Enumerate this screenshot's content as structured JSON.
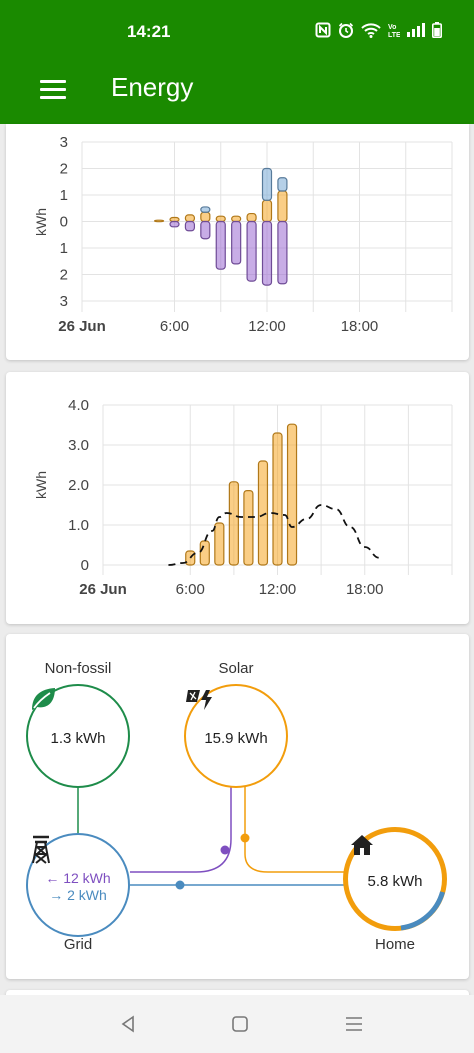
{
  "status_bar": {
    "time": "14:21"
  },
  "app_bar": {
    "title": "Energy"
  },
  "chart_data": [
    {
      "type": "bar",
      "ylabel": "kWh",
      "y_tick_labels": [
        "3",
        "2",
        "1",
        "0",
        "1",
        "2",
        "3"
      ],
      "ylim": [
        -3,
        3
      ],
      "x_tick_labels": [
        "26 Jun",
        "6:00",
        "12:00",
        "18:00"
      ],
      "x_range_hours": [
        0,
        24
      ],
      "grid": true,
      "x_hours": [
        5,
        6,
        7,
        8,
        9,
        10,
        11,
        12,
        13
      ],
      "series": [
        {
          "name": "",
          "color": "#f5a623",
          "values": [
            0.05,
            0.15,
            0.25,
            0.35,
            0.2,
            0.2,
            0.3,
            0.8,
            1.15
          ]
        },
        {
          "name": "",
          "color": "#79aad6",
          "values": [
            0,
            0,
            0,
            0.2,
            0,
            0,
            0,
            1.2,
            0.5
          ]
        },
        {
          "name": "",
          "color": "#9a6ad1",
          "values": [
            0,
            -0.2,
            -0.35,
            -0.65,
            -1.8,
            -1.6,
            -2.25,
            -2.4,
            -2.35
          ]
        }
      ]
    },
    {
      "type": "bar",
      "ylabel": "kWh",
      "y_tick_labels": [
        "0",
        "1.0",
        "2.0",
        "3.0",
        "4.0"
      ],
      "ylim": [
        0,
        4
      ],
      "x_tick_labels": [
        "26 Jun",
        "6:00",
        "12:00",
        "18:00"
      ],
      "x_range_hours": [
        0,
        24
      ],
      "grid": true,
      "x_hours": [
        6,
        7,
        8,
        9,
        10,
        11,
        12,
        13
      ],
      "series": [
        {
          "name": "",
          "color": "#f5a623",
          "values": [
            0.35,
            0.6,
            1.05,
            2.08,
            1.86,
            2.6,
            3.3,
            3.52
          ]
        }
      ],
      "forecast_line": {
        "x_hours": [
          4.5,
          5.5,
          6.5,
          7.5,
          8,
          8.5,
          9.5,
          10.5,
          11.5,
          12.5,
          13,
          14,
          15,
          16,
          17,
          18,
          19
        ],
        "values": [
          0,
          0.05,
          0.3,
          0.85,
          1.2,
          1.3,
          1.2,
          1.2,
          1.3,
          1.25,
          0.95,
          1.15,
          1.5,
          1.4,
          0.95,
          0.45,
          0.18
        ]
      }
    }
  ],
  "energy_flow": {
    "non_fossil": {
      "label": "Non-fossil",
      "value": "1.3 kWh"
    },
    "solar": {
      "label": "Solar",
      "value": "15.9 kWh"
    },
    "grid": {
      "label": "Grid",
      "import": "← 12 kWh",
      "export": "→ 2 kWh"
    },
    "home": {
      "label": "Home",
      "value": "5.8 kWh"
    },
    "colors": {
      "non_fossil": "#1e8c4a",
      "solar": "#f29d0c",
      "grid": "#4a8bbf",
      "grid_import": "#7e4fc0",
      "home": "#f29d0c"
    }
  }
}
